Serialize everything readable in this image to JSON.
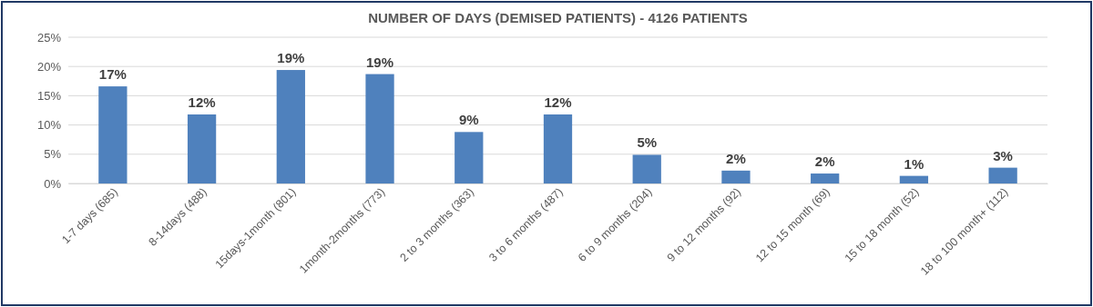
{
  "chart_data": {
    "type": "bar",
    "title": "NUMBER OF DAYS (DEMISED PATIENTS) - 4126 PATIENTS",
    "categories": [
      "1-7 days (685)",
      "8-14days (488)",
      "15days-1month (801)",
      "1month-2months (773)",
      "2 to 3 months (363)",
      "3 to 6 months (487)",
      "6 to 9 months (204)",
      "9 to 12 months (92)",
      "12 to 15 month (69)",
      "15 to 18 month (52)",
      "18 to 100 month+ (112)"
    ],
    "values": [
      16.6,
      11.8,
      19.4,
      18.7,
      8.8,
      11.8,
      4.9,
      2.2,
      1.7,
      1.3,
      2.7
    ],
    "value_labels": [
      "17%",
      "12%",
      "19%",
      "19%",
      "9%",
      "12%",
      "5%",
      "2%",
      "2%",
      "1%",
      "3%"
    ],
    "color": "#4f81bd",
    "ylim": [
      0,
      25
    ],
    "yticks": [
      {
        "value": 0,
        "label": "0%"
      },
      {
        "value": 5,
        "label": "5%"
      },
      {
        "value": 10,
        "label": "10%"
      },
      {
        "value": 15,
        "label": "15%"
      },
      {
        "value": 20,
        "label": "20%"
      },
      {
        "value": 25,
        "label": "25%"
      }
    ],
    "grid": "y"
  }
}
